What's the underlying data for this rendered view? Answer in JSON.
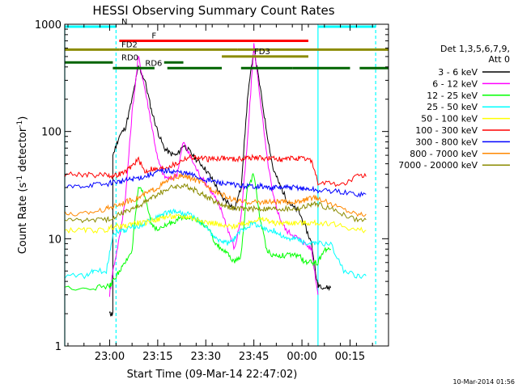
{
  "chart_data": {
    "type": "line",
    "title": "HESSI Observing Summary Count Rates",
    "xlabel": "Start Time (09-Mar-14 22:47:02)",
    "ylabel": "Count Rate (s-1 detector-1)",
    "ylabel_parts": {
      "a": "Count Rate (s",
      "b": "-1",
      "c": " detector",
      "d": "-1",
      "e": ")"
    },
    "x_units": "minutes after 22:47:02",
    "xlim": [
      -1,
      100
    ],
    "ylim": [
      1,
      1000
    ],
    "y_scale": "log",
    "y_ticks": [
      {
        "v": 1,
        "label": "1"
      },
      {
        "v": 10,
        "label": "10"
      },
      {
        "v": 100,
        "label": "100"
      },
      {
        "v": 1000,
        "label": "1000"
      }
    ],
    "x_ticks": [
      {
        "v": 13,
        "label": "23:00"
      },
      {
        "v": 28,
        "label": "23:15"
      },
      {
        "v": 43,
        "label": "23:30"
      },
      {
        "v": 58,
        "label": "23:45"
      },
      {
        "v": 73,
        "label": "00:00"
      },
      {
        "v": 88,
        "label": "00:15"
      }
    ],
    "timestamp": "10-Mar-2014 01:56",
    "legend": {
      "header1": "Det 1,3,5,6,7,9,",
      "header2": "Att 0",
      "position": "right",
      "entries": [
        {
          "label": "3 - 6 keV",
          "color": "#000000"
        },
        {
          "label": "6 - 12 keV",
          "color": "#ff00ff"
        },
        {
          "label": "12 - 25 keV",
          "color": "#00ff00"
        },
        {
          "label": "25 - 50 keV",
          "color": "#00ffff"
        },
        {
          "label": "50 - 100 keV",
          "color": "#ffff00"
        },
        {
          "label": "100 - 300 keV",
          "color": "#ff0000"
        },
        {
          "label": "300 - 800 keV",
          "color": "#0000ff"
        },
        {
          "label": "800 - 7000 keV",
          "color": "#ff8800"
        },
        {
          "label": "7000 - 20000 keV",
          "color": "#8b8b00"
        }
      ]
    },
    "flag_bars": [
      {
        "label": "N",
        "color": "#00ffff",
        "y": 950,
        "segments": [
          [
            -1,
            15
          ],
          [
            78,
            96
          ]
        ]
      },
      {
        "label": "F",
        "color": "#ff0000",
        "y": 700,
        "segments": [
          [
            16,
            75
          ]
        ]
      },
      {
        "label": "FD2",
        "color": "#8b8b00",
        "y": 580,
        "segments": [
          [
            -1,
            16
          ],
          [
            16,
            53
          ],
          [
            53,
            78
          ],
          [
            78,
            100
          ]
        ]
      },
      {
        "label": "FD3",
        "color": "#8b8b00",
        "y": 500,
        "segments": [
          [
            48,
            75
          ]
        ]
      },
      {
        "label": "RD0",
        "color": "#006400",
        "y": 440,
        "segments": [
          [
            -1,
            14
          ],
          [
            30,
            36
          ]
        ]
      },
      {
        "label": "RD6",
        "color": "#006400",
        "y": 390,
        "segments": [
          [
            14,
            27
          ],
          [
            31,
            48
          ],
          [
            54,
            70
          ],
          [
            70,
            88
          ],
          [
            91,
            100
          ]
        ]
      }
    ],
    "day_boundaries": [
      {
        "x": -1,
        "color": "#00ffff"
      },
      {
        "x": 15,
        "color": "#00ffff",
        "dashed": true
      },
      {
        "x": 78,
        "color": "#00ffff"
      },
      {
        "x": 96,
        "color": "#00ffff",
        "dashed": true
      }
    ],
    "series": [
      {
        "name": "3 - 6 keV",
        "color": "#000000",
        "x": [
          13,
          14,
          14,
          16,
          18,
          20,
          22,
          24,
          26,
          28,
          30,
          32,
          34,
          36,
          38,
          40,
          42,
          44,
          46,
          48,
          50,
          52,
          54,
          56,
          58,
          60,
          62,
          64,
          66,
          68,
          70,
          72,
          74,
          76,
          78,
          78,
          80,
          82
        ],
        "y": [
          2,
          2,
          60,
          90,
          110,
          200,
          400,
          300,
          160,
          100,
          70,
          62,
          60,
          75,
          65,
          55,
          48,
          40,
          32,
          24,
          22,
          19,
          30,
          200,
          600,
          250,
          100,
          45,
          32,
          24,
          20,
          18,
          13,
          9,
          3.5,
          3.8,
          3.5,
          3.5
        ]
      },
      {
        "name": "6 - 12 keV",
        "color": "#ff00ff",
        "x": [
          13,
          14,
          16,
          18,
          20,
          22,
          24,
          26,
          28,
          30,
          32,
          34,
          36,
          38,
          40,
          42,
          44,
          46,
          48,
          50,
          52,
          54,
          56,
          58,
          60,
          62,
          64,
          66,
          68,
          70,
          72,
          74,
          76,
          78
        ],
        "y": [
          3,
          5,
          10,
          25,
          150,
          500,
          250,
          120,
          55,
          38,
          36,
          40,
          80,
          60,
          45,
          36,
          30,
          24,
          18,
          12,
          8,
          16,
          80,
          650,
          200,
          60,
          25,
          16,
          12,
          11,
          10,
          9,
          8,
          3
        ]
      },
      {
        "name": "12 - 25 keV",
        "color": "#00ff00",
        "x": [
          -1,
          8,
          13,
          14,
          16,
          18,
          20,
          22,
          24,
          26,
          28,
          30,
          32,
          34,
          36,
          38,
          40,
          42,
          44,
          46,
          48,
          50,
          52,
          54,
          56,
          58,
          60,
          62,
          64,
          66,
          68,
          70,
          72,
          74,
          76,
          78,
          80,
          82
        ],
        "y": [
          3.5,
          3.5,
          3.6,
          4,
          5,
          6,
          8,
          30,
          25,
          14,
          12,
          13,
          14,
          15,
          16,
          16,
          15,
          14,
          12,
          9,
          8,
          7,
          6,
          7,
          30,
          40,
          15,
          8,
          7,
          7,
          7,
          7,
          7,
          6,
          6,
          6,
          8,
          8
        ]
      },
      {
        "name": "25 - 50 keV",
        "color": "#00ffff",
        "x": [
          -1,
          6,
          8,
          12,
          14,
          16,
          18,
          20,
          22,
          24,
          26,
          28,
          30,
          32,
          34,
          36,
          38,
          40,
          42,
          44,
          46,
          48,
          50,
          52,
          54,
          56,
          58,
          60,
          62,
          64,
          66,
          68,
          70,
          72,
          74,
          76,
          78,
          82,
          86,
          90,
          93
        ],
        "y": [
          4.5,
          4.5,
          5,
          5,
          11,
          12,
          12,
          13,
          13,
          14,
          15,
          16,
          17,
          18,
          18,
          17,
          17,
          15,
          14,
          12,
          10,
          9.5,
          9,
          10,
          12,
          13,
          14,
          13,
          12,
          12,
          11,
          10,
          10,
          10,
          9,
          9,
          9,
          9,
          5,
          4.5,
          4.5
        ]
      },
      {
        "name": "50 - 100 keV",
        "color": "#ffff00",
        "x": [
          -1,
          4,
          8,
          12,
          14,
          16,
          18,
          20,
          22,
          24,
          26,
          28,
          30,
          32,
          34,
          36,
          38,
          40,
          42,
          44,
          46,
          48,
          50,
          52,
          54,
          56,
          58,
          60,
          62,
          64,
          66,
          68,
          70,
          72,
          74,
          76,
          78,
          82,
          86,
          90,
          93
        ],
        "y": [
          12,
          12,
          12,
          12,
          13,
          13,
          13,
          14,
          14,
          14,
          15,
          15,
          16,
          16,
          16,
          16,
          16,
          15,
          15,
          14,
          14,
          13,
          13,
          13,
          14,
          14,
          15,
          15,
          15,
          14,
          14,
          14,
          14,
          14,
          14,
          14,
          14,
          14,
          13,
          12,
          12
        ]
      },
      {
        "name": "100 - 300 keV",
        "color": "#ff0000",
        "x": [
          -1,
          4,
          8,
          12,
          14,
          16,
          18,
          20,
          22,
          24,
          26,
          28,
          30,
          32,
          34,
          36,
          38,
          40,
          42,
          44,
          46,
          48,
          50,
          52,
          54,
          56,
          58,
          60,
          62,
          64,
          66,
          68,
          70,
          72,
          74,
          76,
          78,
          82,
          86,
          90,
          93
        ],
        "y": [
          40,
          40,
          39,
          40,
          38,
          40,
          42,
          48,
          55,
          42,
          45,
          44,
          46,
          48,
          50,
          55,
          58,
          57,
          56,
          55,
          56,
          57,
          56,
          55,
          56,
          57,
          57,
          57,
          56,
          56,
          55,
          55,
          56,
          56,
          55,
          54,
          33,
          33,
          32,
          38,
          38
        ]
      },
      {
        "name": "300 - 800 keV",
        "color": "#0000ff",
        "x": [
          -1,
          4,
          8,
          12,
          14,
          16,
          18,
          20,
          22,
          24,
          26,
          28,
          30,
          32,
          34,
          36,
          38,
          40,
          42,
          44,
          46,
          48,
          50,
          52,
          54,
          56,
          58,
          60,
          62,
          64,
          66,
          68,
          70,
          72,
          74,
          76,
          78,
          82,
          86,
          90,
          93
        ],
        "y": [
          30,
          31,
          32,
          32,
          34,
          34,
          35,
          36,
          37,
          38,
          40,
          42,
          43,
          43,
          42,
          41,
          40,
          38,
          36,
          35,
          34,
          33,
          32,
          32,
          31,
          31,
          31,
          31,
          30,
          30,
          30,
          30,
          30,
          30,
          29,
          29,
          28,
          28,
          27,
          26,
          26
        ]
      },
      {
        "name": "800 - 7000 keV",
        "color": "#ff8800",
        "x": [
          -1,
          4,
          8,
          12,
          14,
          16,
          18,
          20,
          22,
          24,
          26,
          28,
          30,
          32,
          34,
          36,
          38,
          40,
          42,
          44,
          46,
          48,
          50,
          52,
          54,
          56,
          58,
          60,
          62,
          64,
          66,
          68,
          70,
          72,
          74,
          76,
          78,
          82,
          86,
          90,
          93
        ],
        "y": [
          17,
          17,
          18,
          19,
          20,
          21,
          22,
          23,
          24,
          26,
          28,
          30,
          33,
          36,
          38,
          38,
          37,
          35,
          33,
          30,
          28,
          26,
          24,
          23,
          22,
          22,
          22,
          22,
          22,
          22,
          22,
          22,
          22,
          22,
          23,
          24,
          24,
          21,
          19,
          17,
          17
        ]
      },
      {
        "name": "7000 - 20000 keV",
        "color": "#8b8b00",
        "x": [
          -1,
          4,
          8,
          12,
          14,
          16,
          18,
          20,
          22,
          24,
          26,
          28,
          30,
          32,
          34,
          36,
          38,
          40,
          42,
          44,
          46,
          48,
          50,
          52,
          54,
          56,
          58,
          60,
          62,
          64,
          66,
          68,
          70,
          72,
          74,
          76,
          78,
          82,
          86,
          90,
          93
        ],
        "y": [
          15,
          15,
          15,
          15,
          16,
          17,
          18,
          19,
          20,
          22,
          24,
          26,
          28,
          30,
          31,
          31,
          30,
          28,
          26,
          24,
          22,
          21,
          20,
          19,
          19,
          19,
          19,
          19,
          19,
          19,
          19,
          19,
          19,
          19,
          20,
          21,
          21,
          19,
          17,
          15,
          15
        ]
      }
    ]
  }
}
